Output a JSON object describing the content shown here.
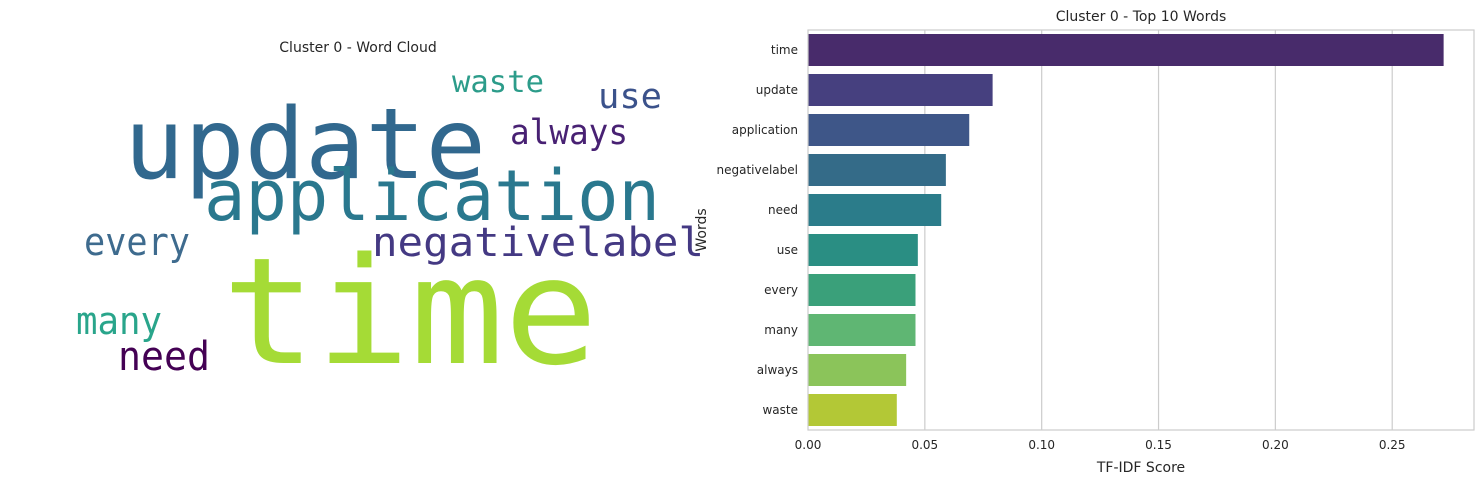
{
  "chart_data": [
    {
      "type": "wordcloud",
      "title": "Cluster 0 - Word Cloud",
      "words": [
        {
          "text": "time",
          "color": "#a5db36"
        },
        {
          "text": "update",
          "color": "#31688e"
        },
        {
          "text": "application",
          "color": "#2a788e"
        },
        {
          "text": "negativelabel",
          "color": "#443983"
        },
        {
          "text": "every",
          "color": "#3e6b8e"
        },
        {
          "text": "always",
          "color": "#482173"
        },
        {
          "text": "use",
          "color": "#3b528b"
        },
        {
          "text": "waste",
          "color": "#2c9c8a"
        },
        {
          "text": "many",
          "color": "#29a58b"
        },
        {
          "text": "need",
          "color": "#440154"
        }
      ]
    },
    {
      "type": "bar",
      "orientation": "horizontal",
      "title": "Cluster 0 - Top 10 Words",
      "xlabel": "TF-IDF Score",
      "ylabel": "Words",
      "categories": [
        "time",
        "update",
        "application",
        "negativelabel",
        "need",
        "use",
        "every",
        "many",
        "always",
        "waste"
      ],
      "values": [
        0.272,
        0.079,
        0.069,
        0.059,
        0.057,
        0.047,
        0.046,
        0.046,
        0.042,
        0.038
      ],
      "colors": [
        "#482b6b",
        "#46407f",
        "#3e5688",
        "#346b88",
        "#2b7c8a",
        "#2a8e83",
        "#3aa07a",
        "#5fb673",
        "#8bc45a",
        "#b3c836"
      ],
      "xlim": [
        0,
        0.285
      ],
      "xticks": [
        0.0,
        0.05,
        0.1,
        0.15,
        0.2,
        0.25
      ],
      "xtick_labels": [
        "0.00",
        "0.05",
        "0.10",
        "0.15",
        "0.20",
        "0.25"
      ],
      "grid": "vertical"
    }
  ]
}
